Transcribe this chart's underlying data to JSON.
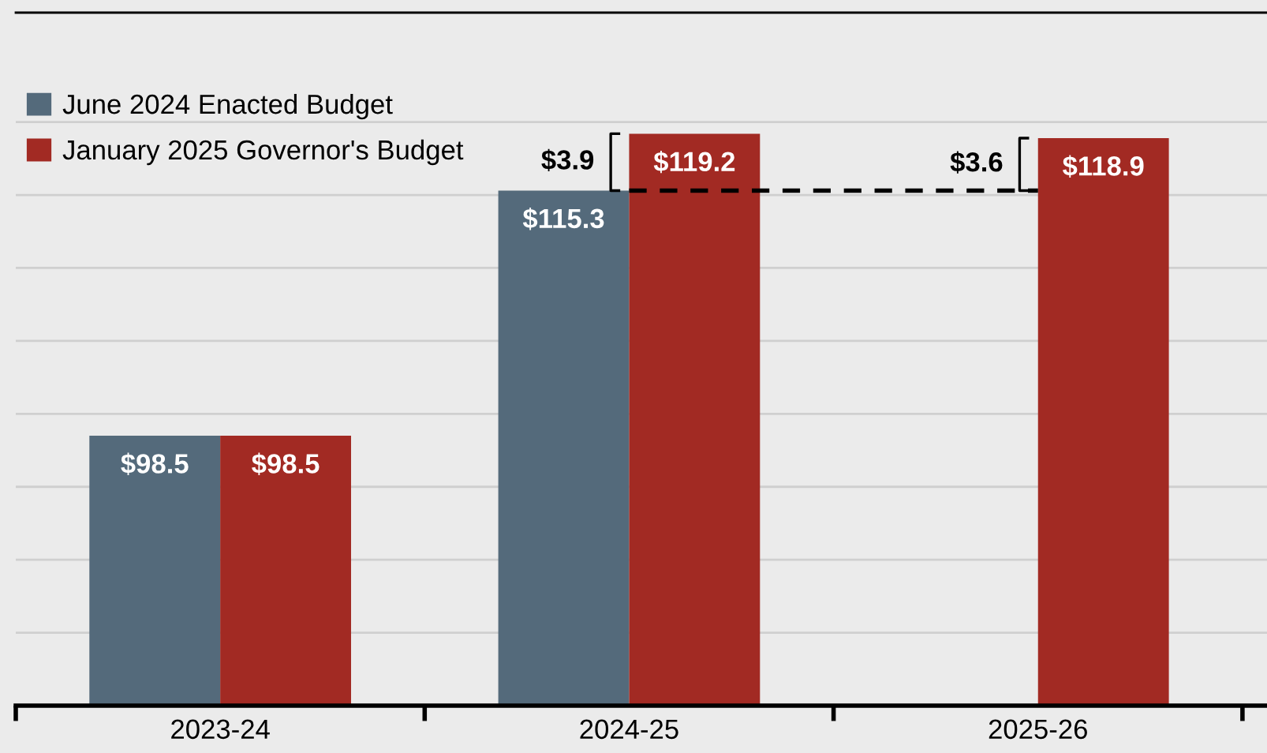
{
  "chart_data": {
    "type": "bar",
    "categories": [
      "2023-24",
      "2024-25",
      "2025-26"
    ],
    "series": [
      {
        "name": "June 2024 Enacted Budget",
        "color": "#546a7b",
        "values": [
          98.5,
          115.3,
          null
        ],
        "value_labels": [
          "$98.5",
          "$115.3",
          null
        ]
      },
      {
        "name": "January 2025 Governor's Budget",
        "color": "#a22a23",
        "values": [
          98.5,
          119.2,
          118.9
        ],
        "value_labels": [
          "$98.5",
          "$119.2",
          "$118.9"
        ]
      }
    ],
    "ylim": [
      80,
      127.5
    ],
    "yticks": [
      {
        "value": 80,
        "label": null
      },
      {
        "value": 85,
        "label": null
      },
      {
        "value": 90,
        "label": null
      },
      {
        "value": 95,
        "label": null
      },
      {
        "value": 100,
        "label": null
      },
      {
        "value": 105,
        "label": null
      },
      {
        "value": 110,
        "label": null
      },
      {
        "value": 115,
        "label": null
      },
      {
        "value": 120,
        "label": null
      }
    ],
    "tick_labels": "x",
    "grid": "y",
    "legend": "top left",
    "ref_lines": [
      {
        "axis": "y",
        "value": 115.3,
        "color": "#000000",
        "line_style": "dashed"
      }
    ],
    "annotations": [
      {
        "text": "$3.9",
        "x": "2024-25",
        "y": 119.2
      },
      {
        "text": "$3.6",
        "x": "2025-26",
        "y": 118.9
      }
    ]
  }
}
